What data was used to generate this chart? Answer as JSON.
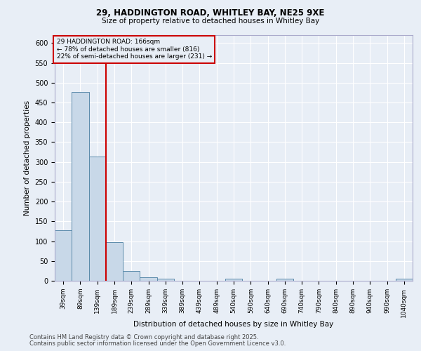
{
  "title1": "29, HADDINGTON ROAD, WHITLEY BAY, NE25 9XE",
  "title2": "Size of property relative to detached houses in Whitley Bay",
  "xlabel": "Distribution of detached houses by size in Whitley Bay",
  "ylabel": "Number of detached properties",
  "annotation_line1": "29 HADDINGTON ROAD: 166sqm",
  "annotation_line2": "← 78% of detached houses are smaller (816)",
  "annotation_line3": "22% of semi-detached houses are larger (231) →",
  "footer1": "Contains HM Land Registry data © Crown copyright and database right 2025.",
  "footer2": "Contains public sector information licensed under the Open Government Licence v3.0.",
  "categories": [
    "39sqm",
    "89sqm",
    "139sqm",
    "189sqm",
    "239sqm",
    "289sqm",
    "339sqm",
    "389sqm",
    "439sqm",
    "489sqm",
    "540sqm",
    "590sqm",
    "640sqm",
    "690sqm",
    "740sqm",
    "790sqm",
    "840sqm",
    "890sqm",
    "940sqm",
    "990sqm",
    "1040sqm"
  ],
  "values": [
    128,
    477,
    313,
    98,
    25,
    9,
    6,
    0,
    0,
    0,
    6,
    0,
    0,
    6,
    0,
    0,
    0,
    0,
    0,
    0,
    5
  ],
  "bar_color": "#c8d8e8",
  "bar_edge_color": "#5a8aaa",
  "vline_color": "#cc0000",
  "annotation_box_color": "#cc0000",
  "background_color": "#e8eef6",
  "grid_color": "#ffffff",
  "ylim": [
    0,
    620
  ],
  "yticks": [
    0,
    50,
    100,
    150,
    200,
    250,
    300,
    350,
    400,
    450,
    500,
    550,
    600
  ]
}
